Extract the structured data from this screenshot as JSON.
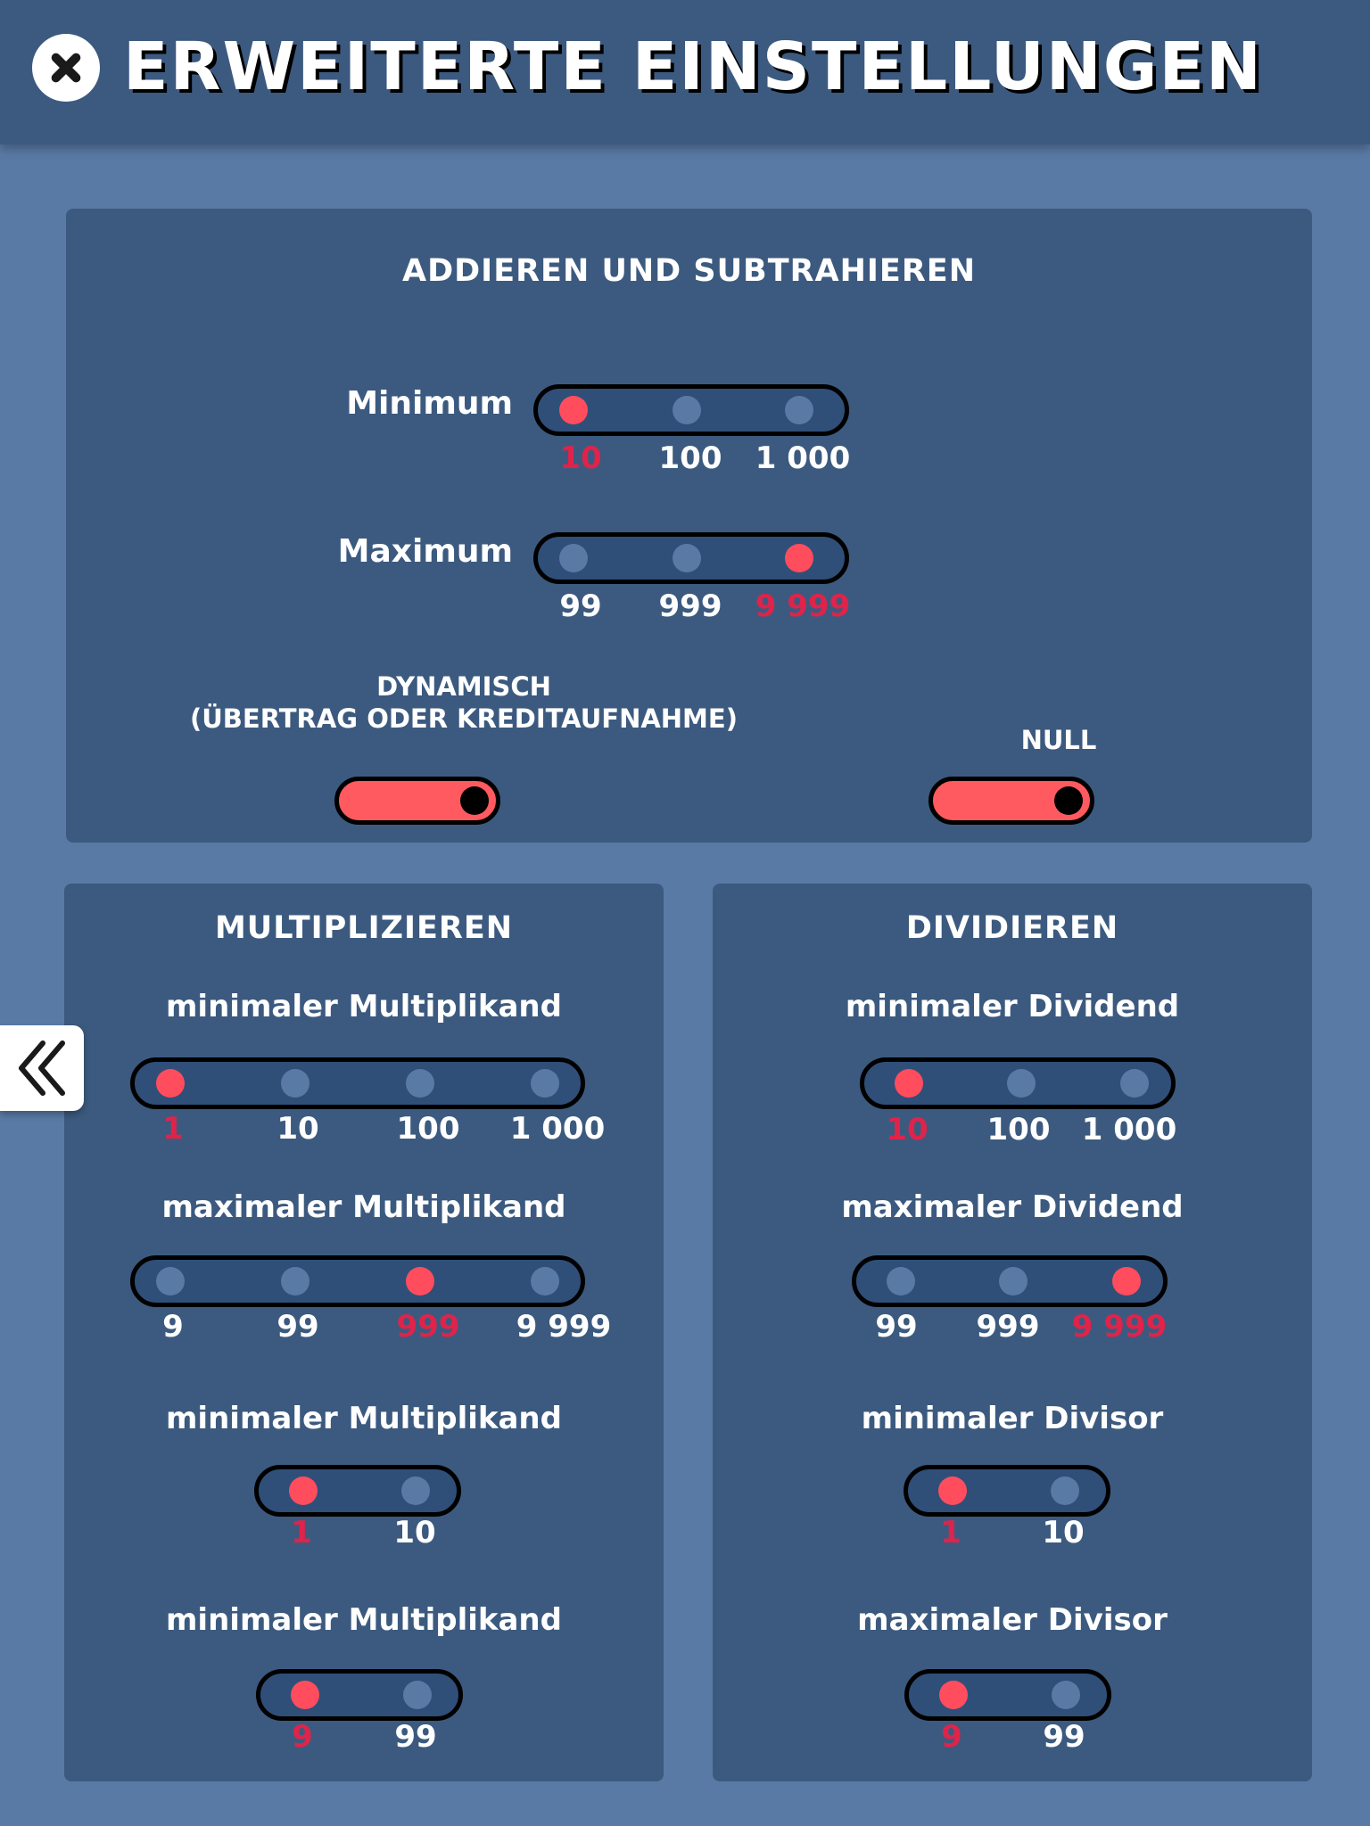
{
  "header": {
    "title": "ERWEITERTE EINSTELLUNGEN",
    "close_icon": "close-icon"
  },
  "add_sub": {
    "title": "ADDIEREN UND SUBTRAHIEREN",
    "minimum": {
      "label": "Minimum",
      "options": [
        "10",
        "100",
        "1 000"
      ],
      "selected": 0
    },
    "maximum": {
      "label": "Maximum",
      "options": [
        "99",
        "999",
        "9 999"
      ],
      "selected": 2
    },
    "dynamic": {
      "label_line1": "DYNAMISCH",
      "label_line2": "(ÜBERTRAG ODER KREDITAUFNAHME)",
      "on": true
    },
    "null": {
      "label": "NULL",
      "on": true
    }
  },
  "multiply": {
    "title": "MULTIPLIZIEREN",
    "sliders": [
      {
        "label": "minimaler Multiplikand",
        "options": [
          "1",
          "10",
          "100",
          "1 000"
        ],
        "selected": 0
      },
      {
        "label": "maximaler Multiplikand",
        "options": [
          "9",
          "99",
          "999",
          "9 999"
        ],
        "selected": 2
      },
      {
        "label": "minimaler Multiplikand",
        "options": [
          "1",
          "10"
        ],
        "selected": 0
      },
      {
        "label": "minimaler Multiplikand",
        "options": [
          "9",
          "99"
        ],
        "selected": 0
      }
    ]
  },
  "divide": {
    "title": "DIVIDIEREN",
    "sliders": [
      {
        "label": "minimaler Dividend",
        "options": [
          "10",
          "100",
          "1 000"
        ],
        "selected": 0
      },
      {
        "label": "maximaler Dividend",
        "options": [
          "99",
          "999",
          "9 999"
        ],
        "selected": 2
      },
      {
        "label": "minimaler Divisor",
        "options": [
          "1",
          "10"
        ],
        "selected": 0
      },
      {
        "label": "maximaler Divisor",
        "options": [
          "9",
          "99"
        ],
        "selected": 0
      }
    ]
  },
  "side_tab": {
    "icon": "double-chevron-left-icon"
  },
  "colors": {
    "background": "#5a7aa6",
    "panel": "#3c5a7f",
    "accent": "#ff4d5e",
    "selected_text": "#e0234a"
  }
}
